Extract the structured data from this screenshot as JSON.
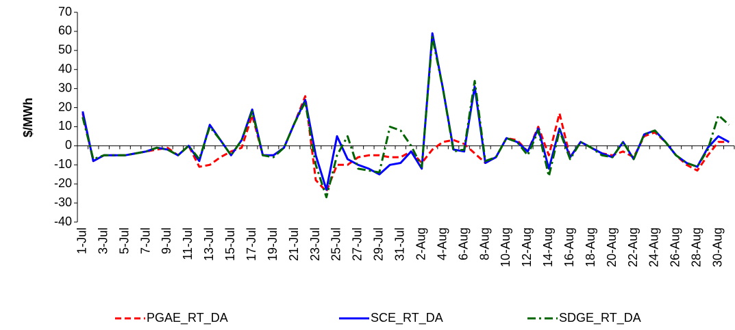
{
  "chart_data": {
    "type": "line",
    "y_label": "$/MWh",
    "categories": [
      "1-Jul",
      null,
      "3-Jul",
      null,
      "5-Jul",
      null,
      "7-Jul",
      null,
      "9-Jul",
      null,
      "11-Jul",
      null,
      "13-Jul",
      null,
      "15-Jul",
      null,
      "17-Jul",
      null,
      "19-Jul",
      null,
      "21-Jul",
      null,
      "23-Jul",
      null,
      "25-Jul",
      null,
      "27-Jul",
      null,
      "29-Jul",
      null,
      "31-Jul",
      null,
      "2-Aug",
      null,
      "4-Aug",
      null,
      "6-Aug",
      null,
      "8-Aug",
      null,
      "10-Aug",
      null,
      "12-Aug",
      null,
      "14-Aug",
      null,
      "16-Aug",
      null,
      "18-Aug",
      null,
      "20-Aug",
      null,
      "22-Aug",
      null,
      "24-Aug",
      null,
      "26-Aug",
      null,
      "28-Aug",
      null,
      "30-Aug",
      null
    ],
    "series": [
      {
        "name": "PGAE_RT_DA",
        "color": "#ff0000",
        "style": "dashed",
        "values": [
          17,
          -8,
          -5,
          -5,
          -5,
          -4,
          -3,
          -2,
          -1,
          -5,
          0,
          -11,
          -10,
          -6,
          -3,
          -1,
          16,
          -5,
          -5,
          -1,
          12,
          26,
          -18,
          -24,
          -10,
          -10,
          -6,
          -5,
          -5,
          -6,
          -6,
          -3,
          -9,
          -2,
          2,
          3,
          1,
          -4,
          -9,
          -6,
          4,
          3,
          -3,
          10,
          -5,
          17,
          -6,
          2,
          -1,
          -4,
          -5,
          -3,
          -6,
          5,
          7,
          2,
          -5,
          -10,
          -13,
          -5,
          2,
          2
        ]
      },
      {
        "name": "SCE_RT_DA",
        "color": "#0000ff",
        "style": "solid",
        "values": [
          18,
          -8,
          -5,
          -5,
          -5,
          -4,
          -3,
          -1,
          -2,
          -5,
          0,
          -8,
          11,
          3,
          -5,
          3,
          19,
          -5,
          -5,
          -1,
          12,
          24,
          -5,
          -23,
          5,
          -7,
          -10,
          -12,
          -15,
          -10,
          -9,
          -3,
          -12,
          59,
          30,
          -2,
          -3,
          31,
          -9,
          -6,
          4,
          2,
          -3,
          9,
          -12,
          9,
          -6,
          2,
          -1,
          -4,
          -6,
          2,
          -7,
          6,
          8,
          2,
          -5,
          -9,
          -11,
          -1,
          5,
          2
        ]
      },
      {
        "name": "SDGE_RT_DA",
        "color": "#006400",
        "style": "dashdot",
        "values": [
          15,
          -7,
          -5,
          -5,
          -5,
          -4,
          -3,
          -1,
          -2,
          -5,
          0,
          -7,
          10,
          3,
          -5,
          3,
          18,
          -5,
          -6,
          -1,
          12,
          23,
          -10,
          -27,
          -5,
          5,
          -12,
          -13,
          -14,
          10,
          8,
          0,
          -11,
          57,
          30,
          -3,
          -2,
          34,
          -8,
          -6,
          4,
          2,
          -5,
          8,
          -16,
          8,
          -7,
          2,
          -1,
          -5,
          -6,
          2,
          -7,
          6,
          8,
          2,
          -5,
          -9,
          -11,
          -2,
          16,
          11
        ]
      }
    ],
    "ylim": [
      -40,
      70
    ],
    "yticks": [
      -40,
      -30,
      -20,
      -10,
      0,
      10,
      20,
      30,
      40,
      50,
      60,
      70
    ],
    "legend": "bottom"
  }
}
